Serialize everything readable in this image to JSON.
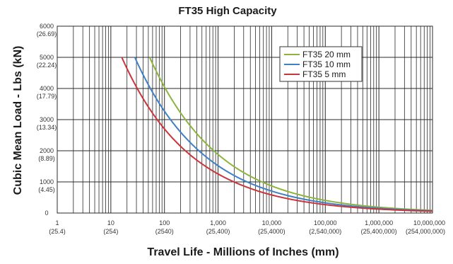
{
  "chart_data": {
    "type": "line",
    "title": "FT35 High Capacity",
    "xlabel": "Travel Life - Millions of Inches (mm)",
    "ylabel": "Cubic Mean Load - Lbs (kN)",
    "x_scale": "log",
    "xlim": [
      1,
      10000000
    ],
    "ylim": [
      0,
      6000
    ],
    "grid": true,
    "legend_position": "top-right",
    "x_ticks": [
      {
        "value": 1,
        "label": "1",
        "sublabel": "(25.4)"
      },
      {
        "value": 10,
        "label": "10",
        "sublabel": "(254)"
      },
      {
        "value": 100,
        "label": "100",
        "sublabel": "(2540)"
      },
      {
        "value": 1000,
        "label": "1,000",
        "sublabel": "(25,400)"
      },
      {
        "value": 10000,
        "label": "10,000",
        "sublabel": "(25,4000)"
      },
      {
        "value": 100000,
        "label": "100,000",
        "sublabel": "(2,540,000)"
      },
      {
        "value": 1000000,
        "label": "1,000,000",
        "sublabel": "(25,400,000)"
      },
      {
        "value": 10000000,
        "label": "10,000,000",
        "sublabel": "(254,000,000)"
      }
    ],
    "y_ticks": [
      {
        "value": 0,
        "label": "0",
        "sublabel": ""
      },
      {
        "value": 1000,
        "label": "1000",
        "sublabel": "(4.45)"
      },
      {
        "value": 2000,
        "label": "2000",
        "sublabel": "(8.89)"
      },
      {
        "value": 3000,
        "label": "3000",
        "sublabel": "(13.34)"
      },
      {
        "value": 4000,
        "label": "4000",
        "sublabel": "(17.79)"
      },
      {
        "value": 5000,
        "label": "5000",
        "sublabel": "(22.24)"
      },
      {
        "value": 6000,
        "label": "6000",
        "sublabel": "(26.69)"
      }
    ],
    "series": [
      {
        "name": "FT35 20 mm",
        "color": "#8db43e",
        "x": [
          53,
          100,
          300,
          1000,
          3000,
          10000,
          100000,
          1000000,
          10000000
        ],
        "y": [
          5000,
          4050,
          2810,
          1880,
          1300,
          870,
          405,
          188,
          87
        ]
      },
      {
        "name": "FT35 10 mm",
        "color": "#3f7fc6",
        "x": [
          28,
          100,
          300,
          1000,
          3000,
          10000,
          100000,
          1000000,
          10000000
        ],
        "y": [
          5000,
          3270,
          2270,
          1520,
          1050,
          705,
          327,
          152,
          70
        ]
      },
      {
        "name": "FT35 5 mm",
        "color": "#c9353a",
        "x": [
          16,
          100,
          300,
          1000,
          3000,
          10000,
          100000,
          1000000,
          10000000
        ],
        "y": [
          5000,
          2700,
          1870,
          1255,
          870,
          580,
          270,
          125,
          58
        ]
      }
    ]
  }
}
